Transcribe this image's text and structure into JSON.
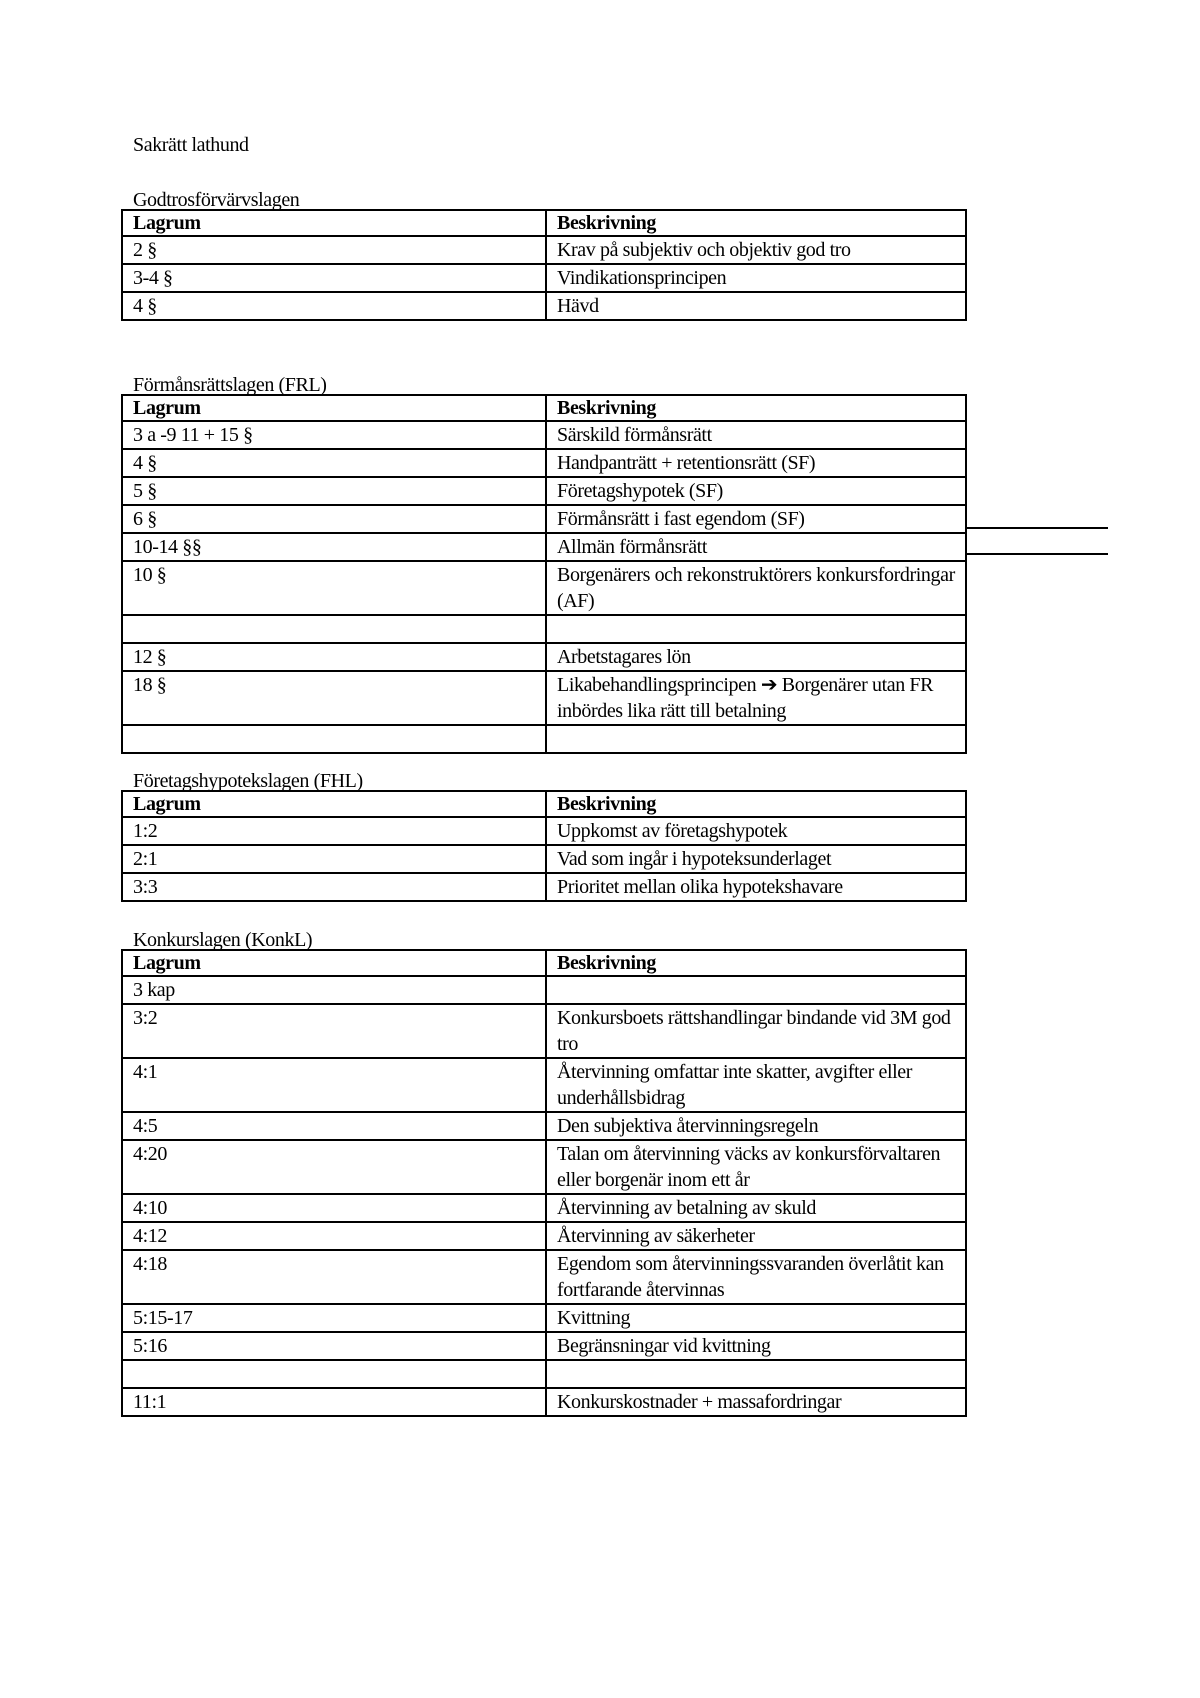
{
  "title": "Sakrätt lathund",
  "sections": [
    {
      "heading": "Godtrosförvärvslagen",
      "columns": [
        "Lagrum",
        "Beskrivning"
      ],
      "rows": [
        [
          "2 §",
          "Krav på subjektiv och objektiv god tro"
        ],
        [
          "3-4 §",
          "Vindikationsprincipen"
        ],
        [
          "4 §",
          "Hävd"
        ]
      ]
    },
    {
      "heading": "Förmånsrättslagen (FRL)",
      "columns": [
        "Lagrum",
        "Beskrivning"
      ],
      "rows": [
        [
          "3 a -9 11 + 15 §",
          "Särskild förmånsrätt"
        ],
        [
          "4 §",
          "Handpanträtt + retentionsrätt (SF)"
        ],
        [
          "5 §",
          "Företagshypotek (SF)"
        ],
        [
          "6 §",
          "Förmånsrätt i fast egendom (SF)"
        ],
        [
          "10-14 §§",
          "Allmän förmånsrätt"
        ],
        [
          "10 §",
          "Borgenärers och rekonstruktörers konkursfordringar (AF)"
        ],
        [
          "",
          ""
        ],
        [
          "12 §",
          "Arbetstagares lön"
        ],
        [
          "18 §",
          "Likabehandlingsprincipen ➔ Borgenärer utan FR inbördes lika rätt till betalning"
        ],
        [
          "",
          ""
        ]
      ]
    },
    {
      "heading": "Företagshypotekslagen (FHL)",
      "columns": [
        "Lagrum",
        "Beskrivning"
      ],
      "rows": [
        [
          "1:2",
          "Uppkomst av företagshypotek"
        ],
        [
          "2:1",
          "Vad som ingår i hypoteksunderlaget"
        ],
        [
          "3:3",
          "Prioritet mellan olika hypotekshavare"
        ]
      ]
    },
    {
      "heading": "Konkurslagen (KonkL)",
      "columns": [
        "Lagrum",
        "Beskrivning"
      ],
      "rows": [
        [
          "3 kap",
          ""
        ],
        [
          "3:2",
          "Konkursboets rättshandlingar bindande vid 3M god tro"
        ],
        [
          "4:1",
          "Återvinning omfattar inte skatter, avgifter eller underhållsbidrag"
        ],
        [
          "4:5",
          "Den subjektiva återvinningsregeln"
        ],
        [
          "4:20",
          "Talan om återvinning väcks av konkursförvaltaren eller borgenär inom ett år"
        ],
        [
          "4:10",
          "Återvinning av betalning av skuld"
        ],
        [
          "4:12",
          "Återvinning av säkerheter"
        ],
        [
          "4:18",
          "Egendom som återvinningssvaranden överlåtit kan fortfarande återvinnas"
        ],
        [
          "5:15-17",
          "Kvittning"
        ],
        [
          "5:16",
          "Begränsningar vid kvittning"
        ],
        [
          "",
          ""
        ],
        [
          "11:1",
          "Konkurskostnader + massafordringar"
        ]
      ]
    }
  ]
}
